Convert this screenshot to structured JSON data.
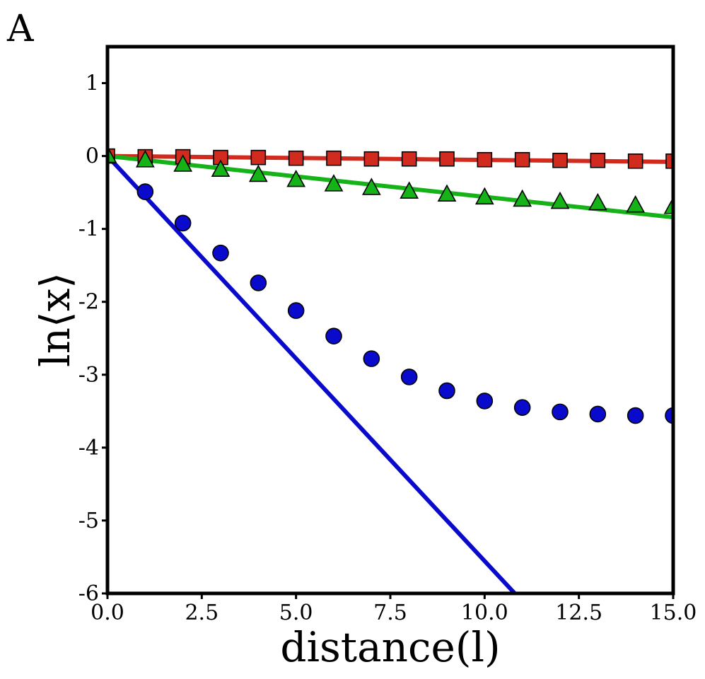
{
  "panel_label": "A",
  "chart_data": {
    "type": "line",
    "title": "",
    "xlabel": "distance(l)",
    "ylabel": "ln⟨x⟩",
    "xlim": [
      0,
      15
    ],
    "ylim": [
      -6,
      1.5
    ],
    "x_ticks": [
      0,
      2.5,
      5,
      7.5,
      10,
      12.5,
      15
    ],
    "x_tick_labels": [
      "0.0",
      "2.5",
      "5.0",
      "7.5",
      "10.0",
      "12.5",
      "15.0"
    ],
    "y_ticks": [
      1,
      0,
      -1,
      -2,
      -3,
      -4,
      -5,
      -6
    ],
    "y_tick_labels": [
      "1",
      "0",
      "-1",
      "-2",
      "-3",
      "-4",
      "-5",
      "-6"
    ],
    "grid": false,
    "legend": "none",
    "lines": [
      {
        "color": "#d12a1e",
        "x": [
          0,
          15
        ],
        "y": [
          0,
          -0.08
        ]
      },
      {
        "color": "#16b318",
        "x": [
          0,
          15
        ],
        "y": [
          0,
          -0.84
        ]
      },
      {
        "color": "#0a0acc",
        "x": [
          0,
          10.8
        ],
        "y": [
          0,
          -6
        ]
      }
    ],
    "markers": [
      {
        "shape": "square",
        "color": "#d12a1e",
        "x": [
          0,
          1,
          2,
          3,
          4,
          5,
          6,
          7,
          8,
          9,
          10,
          11,
          12,
          13,
          14,
          15
        ],
        "y": [
          0,
          -0.01,
          -0.01,
          -0.02,
          -0.02,
          -0.03,
          -0.03,
          -0.04,
          -0.04,
          -0.04,
          -0.05,
          -0.05,
          -0.06,
          -0.06,
          -0.07,
          -0.07
        ]
      },
      {
        "shape": "triangle",
        "color": "#16b318",
        "x": [
          0,
          1,
          2,
          3,
          4,
          5,
          6,
          7,
          8,
          9,
          10,
          11,
          12,
          13,
          14,
          15
        ],
        "y": [
          0,
          -0.06,
          -0.12,
          -0.19,
          -0.26,
          -0.33,
          -0.39,
          -0.44,
          -0.49,
          -0.53,
          -0.57,
          -0.6,
          -0.63,
          -0.65,
          -0.68,
          -0.7
        ]
      },
      {
        "shape": "circle",
        "color": "#0a0acc",
        "x": [
          1,
          2,
          3,
          4,
          5,
          6,
          7,
          8,
          9,
          10,
          11,
          12,
          13,
          14,
          15
        ],
        "y": [
          -0.49,
          -0.92,
          -1.33,
          -1.74,
          -2.12,
          -2.47,
          -2.78,
          -3.03,
          -3.22,
          -3.36,
          -3.45,
          -3.51,
          -3.54,
          -3.56,
          -3.56
        ]
      }
    ]
  }
}
